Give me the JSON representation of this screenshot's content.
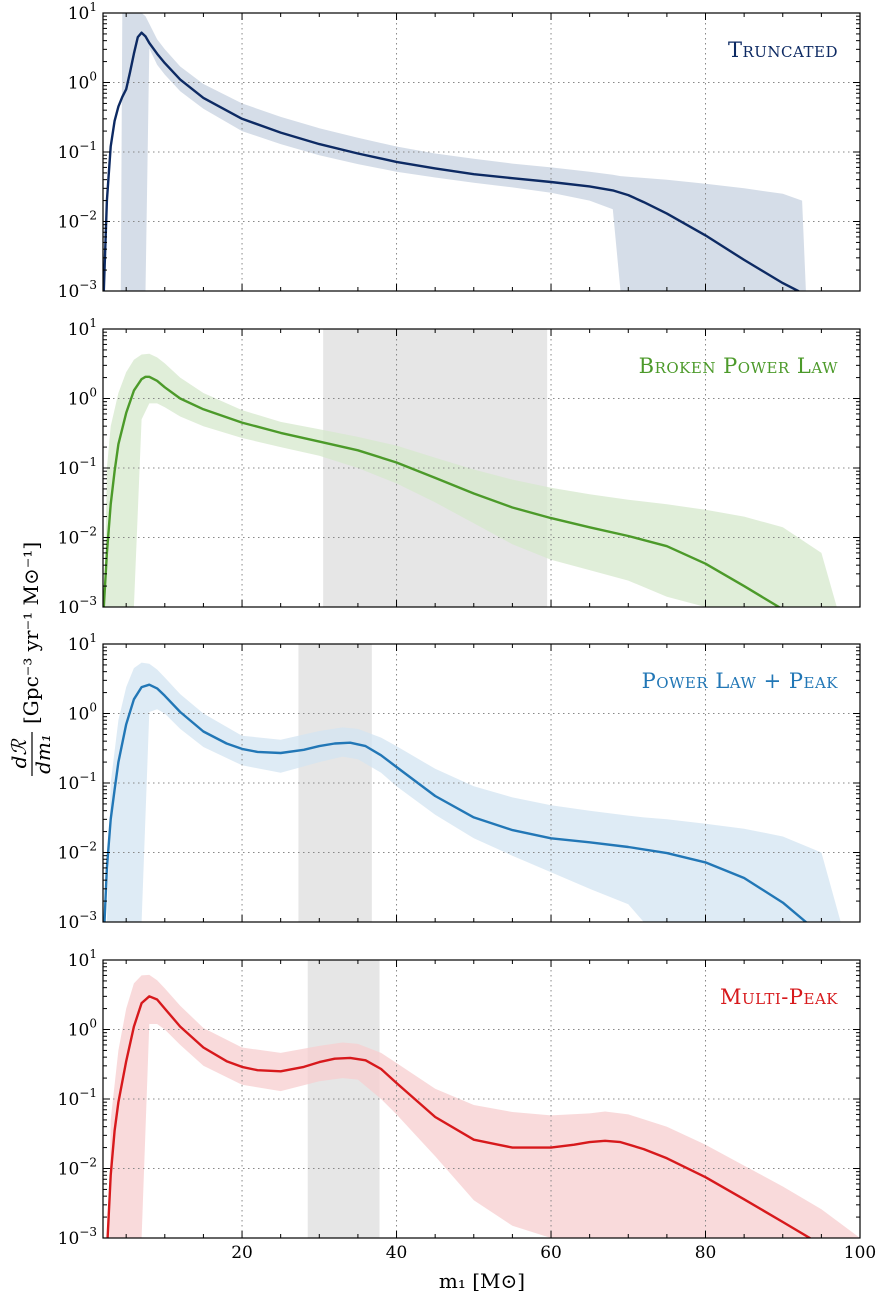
{
  "figure": {
    "xlabel": "m₁ [M⊙]",
    "ylabel": "dℛ/dm₁ [Gpc⁻³ yr⁻¹ M⊙⁻¹]",
    "ylabel_numerator": "dℛ",
    "ylabel_denominator": "dm₁",
    "ylabel_units": "[Gpc⁻³ yr⁻¹ M⊙⁻¹]"
  },
  "chart_data": [
    {
      "type": "line",
      "title": "Truncated",
      "color": "#0d2a63",
      "band_color": "#c7d1e0",
      "xlim": [
        2,
        100
      ],
      "ylim": [
        0.001,
        10
      ],
      "yscale": "log",
      "xticks": [
        20,
        40,
        60,
        80,
        100
      ],
      "yticks": [
        "10^1",
        "10^0",
        "10^-1",
        "10^-2",
        "10^-3"
      ],
      "grid": true,
      "shaded_regions": [],
      "median": {
        "x": [
          2.1,
          2.5,
          3,
          3.5,
          4,
          4.5,
          5,
          5.5,
          6,
          6.5,
          7,
          7.5,
          8,
          9,
          10,
          12,
          15,
          20,
          25,
          30,
          35,
          40,
          45,
          50,
          55,
          60,
          65,
          68,
          70,
          72,
          75,
          80,
          85,
          90,
          92
        ],
        "y": [
          0.001,
          0.02,
          0.12,
          0.28,
          0.45,
          0.62,
          0.8,
          1.4,
          2.6,
          4.5,
          5.2,
          4.6,
          3.7,
          2.6,
          1.9,
          1.1,
          0.6,
          0.3,
          0.19,
          0.13,
          0.095,
          0.072,
          0.058,
          0.048,
          0.042,
          0.037,
          0.032,
          0.028,
          0.024,
          0.019,
          0.013,
          0.0063,
          0.0028,
          0.0013,
          0.001
        ]
      },
      "band": {
        "x": [
          4.3,
          4.5,
          5,
          6,
          7,
          7.5,
          8,
          9,
          10,
          12,
          15,
          20,
          25,
          30,
          35,
          40,
          45,
          50,
          55,
          60,
          65,
          68,
          69,
          70,
          75,
          80,
          85,
          90,
          92.5,
          93
        ],
        "upper": [
          0.001,
          10,
          10,
          10,
          10,
          9,
          7,
          4.2,
          3,
          1.7,
          0.95,
          0.5,
          0.32,
          0.22,
          0.16,
          0.12,
          0.095,
          0.08,
          0.068,
          0.06,
          0.052,
          0.047,
          0.045,
          0.044,
          0.04,
          0.035,
          0.03,
          0.025,
          0.02,
          0.001
        ],
        "lower": [
          0.001,
          0.001,
          0.001,
          0.001,
          0.001,
          0.001,
          3.1,
          1.8,
          1.3,
          0.75,
          0.42,
          0.2,
          0.13,
          0.09,
          0.067,
          0.052,
          0.043,
          0.036,
          0.031,
          0.026,
          0.02,
          0.015,
          0.001,
          0.001,
          0.001,
          0.001,
          0.001,
          0.001,
          0.001,
          0.001
        ]
      }
    },
    {
      "type": "line",
      "title": "Broken Power Law",
      "color": "#4c9a2a",
      "band_color": "#d6e8cc",
      "xlim": [
        2,
        100
      ],
      "ylim": [
        0.001,
        10
      ],
      "yscale": "log",
      "xticks": [
        20,
        40,
        60,
        80,
        100
      ],
      "yticks": [
        "10^1",
        "10^0",
        "10^-1",
        "10^-2",
        "10^-3"
      ],
      "grid": true,
      "shaded_regions": [
        [
          30.5,
          59.5
        ]
      ],
      "median": {
        "x": [
          2.1,
          2.5,
          3,
          3.5,
          4,
          5,
          6,
          7,
          7.5,
          8,
          9,
          10,
          12,
          15,
          20,
          25,
          30,
          35,
          40,
          45,
          50,
          55,
          60,
          65,
          70,
          75,
          80,
          85,
          89.5
        ],
        "y": [
          0.001,
          0.006,
          0.03,
          0.09,
          0.22,
          0.62,
          1.3,
          1.9,
          2.05,
          2.05,
          1.8,
          1.45,
          1.0,
          0.7,
          0.45,
          0.32,
          0.24,
          0.18,
          0.12,
          0.072,
          0.043,
          0.027,
          0.019,
          0.014,
          0.0105,
          0.0075,
          0.0042,
          0.002,
          0.001
        ]
      },
      "band": {
        "x": [
          2.2,
          2.5,
          3,
          4,
          5,
          6,
          7,
          8,
          9,
          10,
          12,
          15,
          20,
          25,
          30,
          35,
          40,
          45,
          50,
          55,
          60,
          65,
          70,
          75,
          80,
          85,
          90,
          95,
          97
        ],
        "upper": [
          0.001,
          0.1,
          0.4,
          1.2,
          2.4,
          3.6,
          4.3,
          4.4,
          3.9,
          3.2,
          2.0,
          1.2,
          0.68,
          0.46,
          0.36,
          0.28,
          0.21,
          0.14,
          0.095,
          0.068,
          0.052,
          0.042,
          0.035,
          0.03,
          0.025,
          0.02,
          0.014,
          0.006,
          0.001
        ],
        "lower": [
          0.001,
          0.001,
          0.001,
          0.001,
          0.001,
          0.001,
          0.5,
          0.85,
          0.85,
          0.75,
          0.55,
          0.4,
          0.27,
          0.2,
          0.15,
          0.1,
          0.06,
          0.032,
          0.016,
          0.008,
          0.0048,
          0.0034,
          0.0024,
          0.0014,
          0.001,
          0.001,
          0.001,
          0.001,
          0.001
        ]
      }
    },
    {
      "type": "line",
      "title": "Power Law + Peak",
      "color": "#2277b6",
      "band_color": "#d3e4f2",
      "xlim": [
        2,
        100
      ],
      "ylim": [
        0.001,
        10
      ],
      "yscale": "log",
      "xticks": [
        20,
        40,
        60,
        80,
        100
      ],
      "yticks": [
        "10^1",
        "10^0",
        "10^-1",
        "10^-2",
        "10^-3"
      ],
      "grid": true,
      "shaded_regions": [
        [
          27.3,
          36.8
        ]
      ],
      "median": {
        "x": [
          2.2,
          2.5,
          3,
          3.5,
          4,
          5,
          6,
          7,
          8,
          9,
          10,
          12,
          15,
          18,
          20,
          22,
          25,
          28,
          30,
          32,
          34,
          36,
          38,
          40,
          45,
          50,
          55,
          60,
          65,
          70,
          75,
          80,
          85,
          90,
          93
        ],
        "y": [
          0.001,
          0.006,
          0.03,
          0.08,
          0.2,
          0.7,
          1.6,
          2.4,
          2.6,
          2.3,
          1.8,
          1.05,
          0.55,
          0.37,
          0.31,
          0.28,
          0.27,
          0.3,
          0.34,
          0.37,
          0.38,
          0.34,
          0.25,
          0.17,
          0.065,
          0.032,
          0.021,
          0.016,
          0.014,
          0.012,
          0.0098,
          0.0072,
          0.0043,
          0.0019,
          0.001
        ]
      },
      "band": {
        "x": [
          2.5,
          3,
          4,
          5,
          6,
          7,
          8,
          9,
          10,
          12,
          15,
          20,
          25,
          30,
          33,
          35,
          38,
          40,
          45,
          50,
          55,
          60,
          65,
          70,
          72,
          75,
          80,
          85,
          90,
          95,
          97.5
        ],
        "upper": [
          0.001,
          0.1,
          0.8,
          2.4,
          4.5,
          5.4,
          5.2,
          4.3,
          3.3,
          1.9,
          1.0,
          0.48,
          0.42,
          0.56,
          0.63,
          0.6,
          0.45,
          0.34,
          0.16,
          0.09,
          0.062,
          0.048,
          0.04,
          0.034,
          0.032,
          0.03,
          0.026,
          0.022,
          0.017,
          0.01,
          0.001
        ],
        "lower": [
          0.001,
          0.001,
          0.001,
          0.001,
          0.001,
          0.001,
          1.05,
          1.15,
          1.0,
          0.6,
          0.33,
          0.18,
          0.14,
          0.2,
          0.24,
          0.22,
          0.14,
          0.09,
          0.035,
          0.016,
          0.009,
          0.0052,
          0.003,
          0.0018,
          0.001,
          0.001,
          0.001,
          0.001,
          0.001,
          0.001,
          0.001
        ]
      }
    },
    {
      "type": "line",
      "title": "Multi-Peak",
      "color": "#d7191c",
      "band_color": "#f7cdcf",
      "xlim": [
        2,
        100
      ],
      "ylim": [
        0.001,
        10
      ],
      "yscale": "log",
      "xticks": [
        20,
        40,
        60,
        80,
        100
      ],
      "yticks": [
        "10^1",
        "10^0",
        "10^-1",
        "10^-2",
        "10^-3"
      ],
      "grid": true,
      "shaded_regions": [
        [
          28.5,
          37.8
        ]
      ],
      "median": {
        "x": [
          2.6,
          3,
          3.5,
          4,
          5,
          6,
          7,
          8,
          9,
          10,
          12,
          15,
          18,
          20,
          22,
          25,
          28,
          30,
          32,
          34,
          36,
          38,
          40,
          45,
          50,
          55,
          60,
          63,
          65,
          67,
          69,
          72,
          75,
          80,
          85,
          90,
          93.5
        ],
        "y": [
          0.001,
          0.008,
          0.035,
          0.09,
          0.35,
          1.1,
          2.4,
          3.0,
          2.7,
          2.0,
          1.1,
          0.55,
          0.35,
          0.29,
          0.26,
          0.25,
          0.29,
          0.34,
          0.38,
          0.39,
          0.36,
          0.27,
          0.17,
          0.055,
          0.026,
          0.02,
          0.02,
          0.022,
          0.024,
          0.025,
          0.024,
          0.019,
          0.014,
          0.0075,
          0.0036,
          0.0017,
          0.001
        ]
      },
      "band": {
        "x": [
          2.8,
          3,
          4,
          5,
          6,
          7,
          8,
          9,
          10,
          12,
          15,
          20,
          25,
          30,
          33,
          35,
          38,
          40,
          45,
          50,
          55,
          60,
          65,
          67,
          70,
          75,
          80,
          85,
          90,
          95,
          100
        ],
        "upper": [
          0.001,
          0.05,
          0.5,
          2.0,
          4.6,
          6.0,
          6.1,
          5.1,
          3.9,
          2.2,
          1.05,
          0.55,
          0.46,
          0.58,
          0.65,
          0.62,
          0.46,
          0.33,
          0.14,
          0.082,
          0.065,
          0.058,
          0.062,
          0.066,
          0.06,
          0.04,
          0.022,
          0.011,
          0.0055,
          0.0026,
          0.001
        ],
        "lower": [
          0.001,
          0.001,
          0.001,
          0.001,
          0.001,
          0.001,
          1.2,
          1.2,
          1.0,
          0.6,
          0.3,
          0.16,
          0.13,
          0.18,
          0.2,
          0.19,
          0.1,
          0.06,
          0.015,
          0.0035,
          0.0015,
          0.001,
          0.001,
          0.001,
          0.001,
          0.001,
          0.001,
          0.001,
          0.001,
          0.001,
          0.001
        ]
      }
    }
  ]
}
